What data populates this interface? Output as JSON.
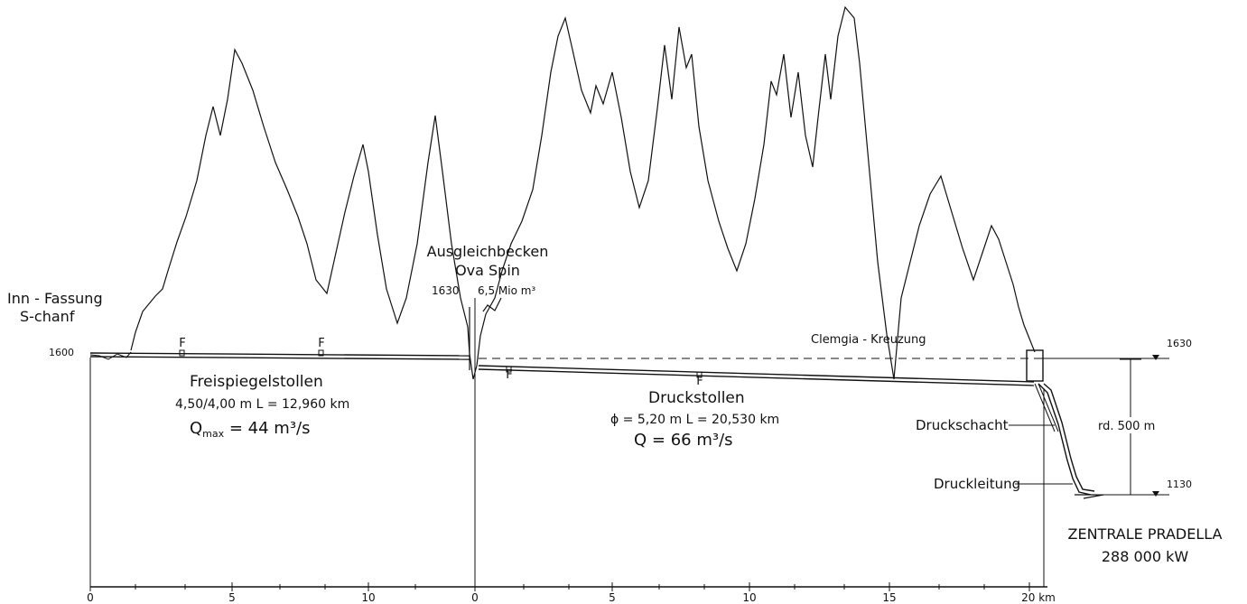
{
  "labels": {
    "inn_fassung": "Inn - Fassung",
    "s_chanf": "S-chanf",
    "ausgleichbecken": "Ausgleichbecken",
    "ova_spin": "Ova Spin",
    "elev_1600": "1600",
    "elev_1630_left": "1630",
    "volume": "6,5 Mio m³",
    "freispiegelstollen": "Freispiegelstollen",
    "frei_dims": "4,50/4,00 m   L = 12,960 km",
    "frei_q_prefix": "Q",
    "frei_q_sub": "max",
    "frei_q_value": " = 44 m³/s",
    "druckstollen": "Druckstollen",
    "druck_dims": "ɸ = 5,20 m   L = 20,530 km",
    "druck_q": "Q = 66 m³/s",
    "clemgia": "Clemgia - Kreuzung",
    "druckschacht": "Druckschacht",
    "druckleitung": "Druckleitung",
    "elev_1630_right": "1630",
    "elev_1130": "1130",
    "height_diff": "rd. 500 m",
    "zentrale": "ZENTRALE PRADELLA",
    "power": "288 000 kW",
    "window_marker": "F"
  },
  "axis": {
    "left_ticks": [
      "0",
      "5",
      "10"
    ],
    "right_ticks": [
      "0",
      "5",
      "10",
      "15",
      "20 km"
    ]
  }
}
